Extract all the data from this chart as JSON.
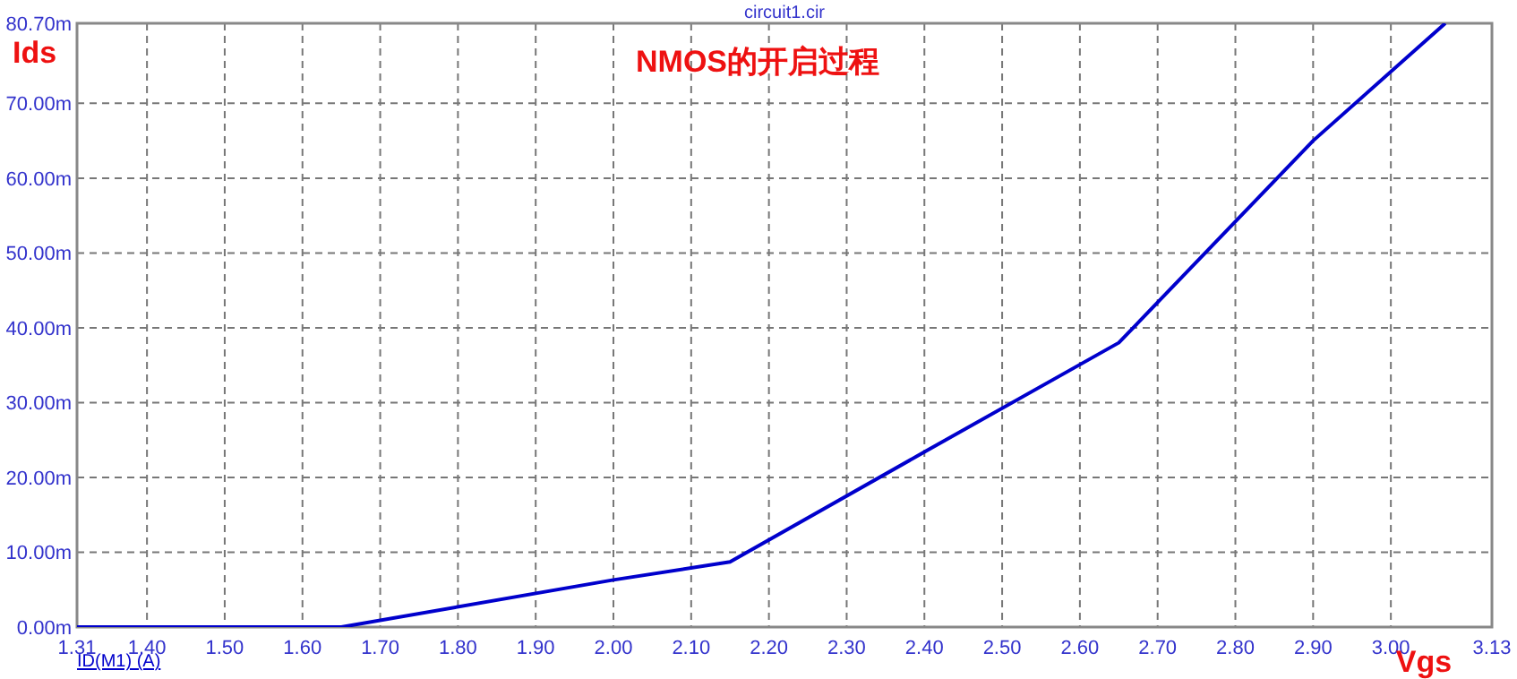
{
  "chart_data": {
    "type": "line",
    "title": "circuit1.cir",
    "subtitle": "NMOS的开启过程",
    "xlabel": "Vgs",
    "ylabel": "Ids",
    "x": [
      1.31,
      1.65,
      2.0,
      2.15,
      2.4,
      2.65,
      2.9,
      3.07
    ],
    "series": [
      {
        "name": "ID(M1) (A)",
        "color": "#0000cc",
        "values": [
          0,
          0,
          6.3,
          8.7,
          23.4,
          38,
          65,
          80.7
        ]
      }
    ],
    "xlim": [
      1.31,
      3.13
    ],
    "xticks": [
      1.31,
      {
        "value": 1.4,
        "label": "1.40"
      },
      {
        "value": 1.5,
        "label": "1.50"
      },
      {
        "value": 1.6,
        "label": "1.60"
      },
      {
        "value": 1.7,
        "label": "1.70"
      },
      {
        "value": 1.8,
        "label": "1.80"
      },
      {
        "value": 1.9,
        "label": "1.90"
      },
      {
        "value": 2.0,
        "label": "2.00"
      },
      {
        "value": 2.1,
        "label": "2.10"
      },
      {
        "value": 2.2,
        "label": "2.20"
      },
      {
        "value": 2.3,
        "label": "2.30"
      },
      {
        "value": 2.4,
        "label": "2.40"
      },
      {
        "value": 2.5,
        "label": "2.50"
      },
      {
        "value": 2.6,
        "label": "2.60"
      },
      {
        "value": 2.7,
        "label": "2.70"
      },
      {
        "value": 2.8,
        "label": "2.80"
      },
      {
        "value": 2.9,
        "label": "2.90"
      },
      {
        "value": 3.0,
        "label": "3.00"
      },
      3.13
    ],
    "ylim": [
      0,
      80.7
    ],
    "yticks": [
      {
        "value": 0,
        "label": "0.00m"
      },
      {
        "value": 10,
        "label": "10.00m"
      },
      {
        "value": 20,
        "label": "20.00m"
      },
      {
        "value": 30,
        "label": "30.00m"
      },
      {
        "value": 40,
        "label": "40.00m"
      },
      {
        "value": 50,
        "label": "50.00m"
      },
      {
        "value": 60,
        "label": "60.00m"
      },
      {
        "value": 70,
        "label": "70.00m"
      },
      {
        "value": 80.7,
        "label": "80.70m"
      }
    ],
    "grid": true,
    "legend": "bottom left",
    "line_style": "solid",
    "marker": "none"
  }
}
